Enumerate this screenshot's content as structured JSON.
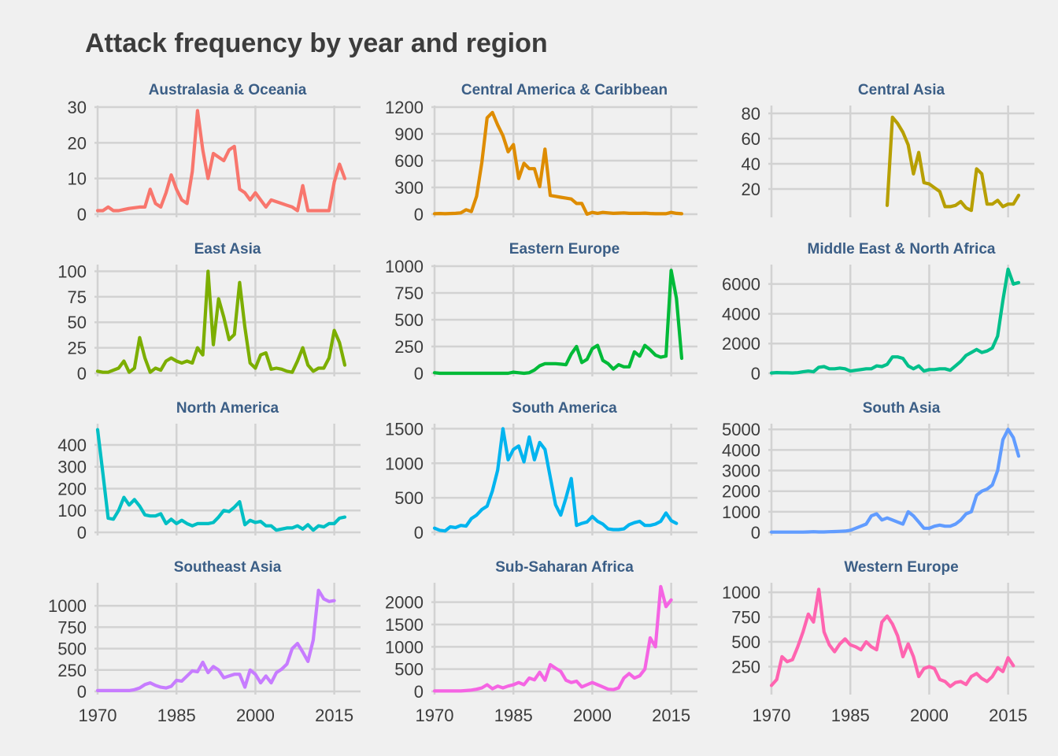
{
  "title": "Attack frequency by year and region",
  "chart_data": {
    "type": "line",
    "layout": "facet-grid-4x3",
    "x_ticks": [
      "1970",
      "1985",
      "2000",
      "2015"
    ],
    "xlim": [
      1970,
      2017
    ],
    "grid": true,
    "legend": "none",
    "panels": [
      {
        "name": "Australasia & Oceania",
        "color": "#F8766D",
        "ylim": [
          0,
          30
        ],
        "ticks": [
          0,
          10,
          20,
          30
        ],
        "start": 1970,
        "values": [
          1,
          1,
          2,
          1,
          1,
          1.3,
          1.6,
          1.8,
          2,
          2,
          7,
          3,
          2,
          6,
          11,
          7,
          4,
          3,
          12,
          29,
          18,
          10,
          17,
          16,
          15,
          18,
          19,
          7,
          6,
          4,
          6,
          4,
          2,
          4,
          3.5,
          3,
          2.5,
          2,
          1,
          8,
          1,
          1,
          1,
          1,
          1,
          9,
          14,
          10
        ]
      },
      {
        "name": "Central America & Caribbean",
        "color": "#DE8C00",
        "ylim": [
          0,
          1200
        ],
        "ticks": [
          0,
          300,
          600,
          900,
          1200
        ],
        "start": 1970,
        "values": [
          5,
          8,
          5,
          8,
          10,
          15,
          50,
          30,
          200,
          580,
          1080,
          1140,
          1000,
          880,
          700,
          780,
          400,
          570,
          510,
          510,
          310,
          730,
          210,
          200,
          190,
          180,
          170,
          120,
          120,
          0,
          20,
          10,
          20,
          15,
          10,
          12,
          15,
          10,
          10,
          10,
          12,
          8,
          5,
          5,
          5,
          20,
          10,
          5
        ]
      },
      {
        "name": "Central Asia",
        "color": "#B79F00",
        "ylim": [
          0,
          85
        ],
        "ticks": [
          20,
          40,
          60,
          80
        ],
        "start": 1992,
        "values": [
          7,
          77,
          72,
          65,
          55,
          32,
          49,
          25,
          24,
          21,
          18,
          6,
          6,
          7,
          10,
          5,
          3,
          36,
          32,
          8,
          8,
          11,
          6,
          8,
          8,
          15
        ]
      },
      {
        "name": "East Asia",
        "color": "#7CAE00",
        "ylim": [
          0,
          105
        ],
        "ticks": [
          0,
          25,
          50,
          75,
          100
        ],
        "start": 1970,
        "values": [
          2,
          1,
          1,
          3,
          5,
          12,
          1,
          5,
          35,
          15,
          1,
          5,
          3,
          12,
          15,
          12,
          10,
          12,
          10,
          25,
          18,
          100,
          28,
          73,
          55,
          33,
          38,
          89,
          45,
          10,
          5,
          18,
          20,
          4,
          5,
          4,
          2,
          1,
          12,
          25,
          8,
          2,
          5,
          5,
          15,
          42,
          30,
          8
        ]
      },
      {
        "name": "Eastern Europe",
        "color": "#00BA38",
        "ylim": [
          0,
          1000
        ],
        "ticks": [
          0,
          250,
          500,
          750,
          1000
        ],
        "start": 1970,
        "values": [
          5,
          0,
          0,
          0,
          0,
          0,
          0,
          0,
          0,
          0,
          0,
          0,
          0,
          0,
          0,
          10,
          5,
          0,
          5,
          30,
          70,
          90,
          90,
          90,
          85,
          80,
          180,
          250,
          100,
          130,
          230,
          260,
          120,
          90,
          40,
          80,
          60,
          60,
          200,
          160,
          260,
          220,
          170,
          150,
          160,
          960,
          700,
          140
        ]
      },
      {
        "name": "Middle East & North Africa",
        "color": "#00C08B",
        "ylim": [
          0,
          7200
        ],
        "ticks": [
          0,
          2000,
          4000,
          6000
        ],
        "start": 1970,
        "values": [
          20,
          50,
          30,
          30,
          20,
          40,
          100,
          150,
          100,
          400,
          450,
          300,
          300,
          350,
          300,
          150,
          200,
          250,
          300,
          300,
          500,
          450,
          600,
          1100,
          1100,
          1000,
          500,
          300,
          500,
          150,
          250,
          250,
          300,
          300,
          200,
          500,
          800,
          1200,
          1400,
          1600,
          1400,
          1500,
          1700,
          2500,
          4900,
          7000,
          6000,
          6100
        ]
      },
      {
        "name": "North America",
        "color": "#00BFC4",
        "ylim": [
          0,
          490
        ],
        "ticks": [
          0,
          100,
          200,
          300,
          400
        ],
        "start": 1970,
        "values": [
          470,
          270,
          65,
          60,
          100,
          160,
          125,
          150,
          120,
          80,
          75,
          75,
          85,
          40,
          60,
          40,
          55,
          40,
          30,
          40,
          40,
          40,
          45,
          70,
          100,
          95,
          115,
          140,
          35,
          55,
          45,
          50,
          30,
          30,
          10,
          15,
          20,
          20,
          30,
          15,
          35,
          10,
          30,
          25,
          40,
          40,
          65,
          70
        ]
      },
      {
        "name": "South America",
        "color": "#00B4EF",
        "ylim": [
          0,
          1550
        ],
        "ticks": [
          0,
          500,
          1000,
          1500
        ],
        "start": 1970,
        "values": [
          60,
          30,
          20,
          80,
          70,
          100,
          90,
          200,
          250,
          330,
          380,
          600,
          900,
          1500,
          1050,
          1200,
          1250,
          1020,
          1380,
          1050,
          1300,
          1200,
          800,
          400,
          250,
          500,
          780,
          100,
          130,
          150,
          230,
          160,
          120,
          50,
          40,
          40,
          50,
          110,
          140,
          160,
          100,
          100,
          120,
          160,
          280,
          170,
          130
        ]
      },
      {
        "name": "South Asia",
        "color": "#619CFF",
        "ylim": [
          0,
          5200
        ],
        "ticks": [
          0,
          1000,
          2000,
          3000,
          4000,
          5000
        ],
        "start": 1970,
        "values": [
          10,
          10,
          10,
          10,
          10,
          10,
          10,
          20,
          30,
          20,
          20,
          30,
          40,
          50,
          60,
          100,
          200,
          300,
          400,
          800,
          900,
          600,
          700,
          600,
          500,
          400,
          1000,
          800,
          500,
          200,
          200,
          300,
          350,
          300,
          300,
          400,
          600,
          900,
          1000,
          1800,
          2000,
          2100,
          2300,
          3000,
          4500,
          5000,
          4600,
          3700
        ]
      },
      {
        "name": "Southeast Asia",
        "color": "#C77CFF",
        "ylim": [
          0,
          1250
        ],
        "ticks": [
          0,
          250,
          500,
          750,
          1000
        ],
        "start": 1970,
        "values": [
          10,
          10,
          10,
          10,
          10,
          10,
          10,
          20,
          40,
          80,
          100,
          70,
          50,
          40,
          60,
          130,
          120,
          180,
          240,
          230,
          340,
          220,
          290,
          250,
          160,
          180,
          200,
          200,
          50,
          250,
          200,
          100,
          180,
          100,
          220,
          260,
          320,
          500,
          560,
          460,
          350,
          600,
          1180,
          1080,
          1050,
          1060
        ]
      },
      {
        "name": "Sub-Saharan Africa",
        "color": "#F564E3",
        "ylim": [
          0,
          2400
        ],
        "ticks": [
          0,
          500,
          1000,
          1500,
          2000
        ],
        "start": 1970,
        "values": [
          10,
          10,
          10,
          10,
          10,
          10,
          20,
          30,
          50,
          80,
          150,
          60,
          120,
          80,
          120,
          150,
          200,
          150,
          300,
          260,
          430,
          250,
          600,
          520,
          450,
          250,
          200,
          230,
          100,
          150,
          200,
          150,
          100,
          50,
          40,
          80,
          300,
          400,
          300,
          350,
          500,
          1200,
          1000,
          2350,
          1900,
          2050
        ]
      },
      {
        "name": "Western Europe",
        "color": "#FF64B0",
        "ylim": [
          0,
          1080
        ],
        "ticks": [
          250,
          500,
          750,
          1000
        ],
        "start": 1970,
        "values": [
          60,
          120,
          350,
          300,
          320,
          450,
          600,
          780,
          700,
          1030,
          600,
          470,
          400,
          480,
          530,
          470,
          450,
          420,
          500,
          450,
          420,
          700,
          760,
          680,
          560,
          350,
          480,
          350,
          150,
          230,
          250,
          230,
          120,
          100,
          50,
          90,
          100,
          70,
          150,
          180,
          130,
          100,
          150,
          240,
          200,
          340,
          260
        ]
      }
    ]
  }
}
